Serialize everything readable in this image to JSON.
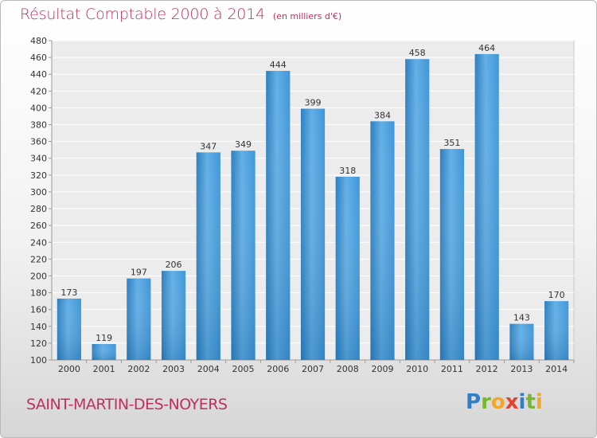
{
  "header": {
    "title": "Résultat Comptable 2000 à 2014",
    "subtitle": "(en milliers d'€)"
  },
  "footer": {
    "commune": "SAINT-MARTIN-DES-NOYERS",
    "logo_text": "Proxiti"
  },
  "colors": {
    "accent": "#c0305f",
    "bar": "#3f96d8",
    "bar_light": "#63afe6",
    "bar_dark": "#2c7fc0"
  },
  "chart_data": {
    "type": "bar",
    "categories": [
      "2000",
      "2001",
      "2002",
      "2003",
      "2004",
      "2005",
      "2006",
      "2007",
      "2008",
      "2009",
      "2010",
      "2011",
      "2012",
      "2013",
      "2014"
    ],
    "values": [
      173,
      119,
      197,
      206,
      347,
      349,
      444,
      399,
      318,
      384,
      458,
      351,
      464,
      143,
      170
    ],
    "ylim": [
      100,
      480
    ],
    "ytick_step": 20,
    "grid": true,
    "data_labels": true
  }
}
